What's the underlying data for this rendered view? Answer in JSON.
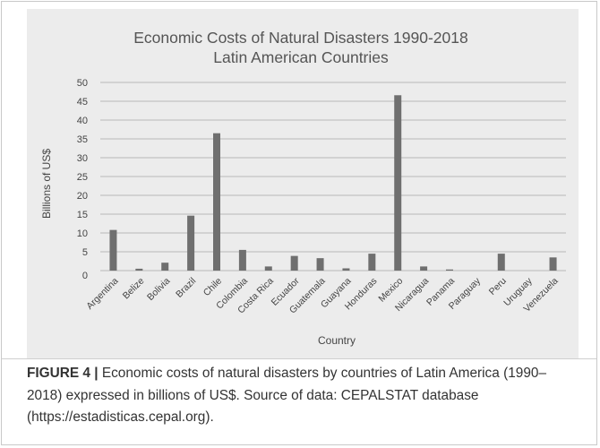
{
  "chart_data": {
    "type": "bar",
    "title": "Economic Costs of Natural Disasters 1990-2018",
    "subtitle": "Latin American Countries",
    "xlabel": "Country",
    "ylabel": "Billions of US$",
    "ylim": [
      0,
      50
    ],
    "yticks": [
      "0",
      "5",
      "10",
      "15",
      "20",
      "25",
      "30",
      "35",
      "40",
      "45",
      "50"
    ],
    "grid": true,
    "bar_color": "#6f6f6f",
    "categories": [
      "Argentina",
      "Belize",
      "Bolivia",
      "Brazil",
      "Chile",
      "Colombia",
      "Costa Rica",
      "Ecuador",
      "Guatemala",
      "Guayana",
      "Honduras",
      "Mexico",
      "Nicaragua",
      "Panama",
      "Paraguay",
      "Peru",
      "Uruguay",
      "Venezuela"
    ],
    "values": [
      10.8,
      0.5,
      2.1,
      14.6,
      36.5,
      5.5,
      1.1,
      3.9,
      3.3,
      0.6,
      4.5,
      46.6,
      1.1,
      0.3,
      0.0,
      4.5,
      0.0,
      3.5
    ]
  },
  "caption": {
    "lead": "FIGURE 4 |",
    "text": " Economic costs of natural disasters by countries of Latin America (1990–2018) expressed in billions of US$. Source of data: CEPALSTAT database (https://estadisticas.cepal.org)."
  }
}
